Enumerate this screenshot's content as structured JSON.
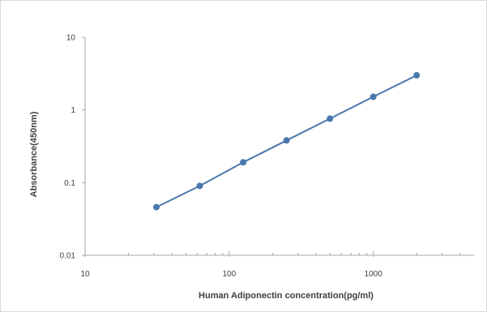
{
  "chart_data": {
    "type": "scatter",
    "title": "",
    "xlabel": "Human Adiponectin  concentration(pg/ml)",
    "ylabel": "Absorbance(450nm)",
    "xscale": "log",
    "yscale": "log",
    "xlim": [
      10,
      5000
    ],
    "ylim": [
      0.01,
      10
    ],
    "x_ticks": [
      10,
      100,
      1000
    ],
    "x_tick_labels": [
      "10",
      "100",
      "1000"
    ],
    "y_ticks": [
      0.01,
      0.1,
      1,
      10
    ],
    "y_tick_labels": [
      "0.01",
      "0.1",
      "1",
      "10"
    ],
    "grid": false,
    "legend": "none",
    "series": [
      {
        "x": [
          31.25,
          62.5,
          125,
          250,
          500,
          1000,
          2000
        ],
        "y": [
          0.046,
          0.09,
          0.19,
          0.38,
          0.76,
          1.52,
          3.0
        ],
        "color": "#4a78ad",
        "line": true,
        "markers": true
      }
    ]
  }
}
